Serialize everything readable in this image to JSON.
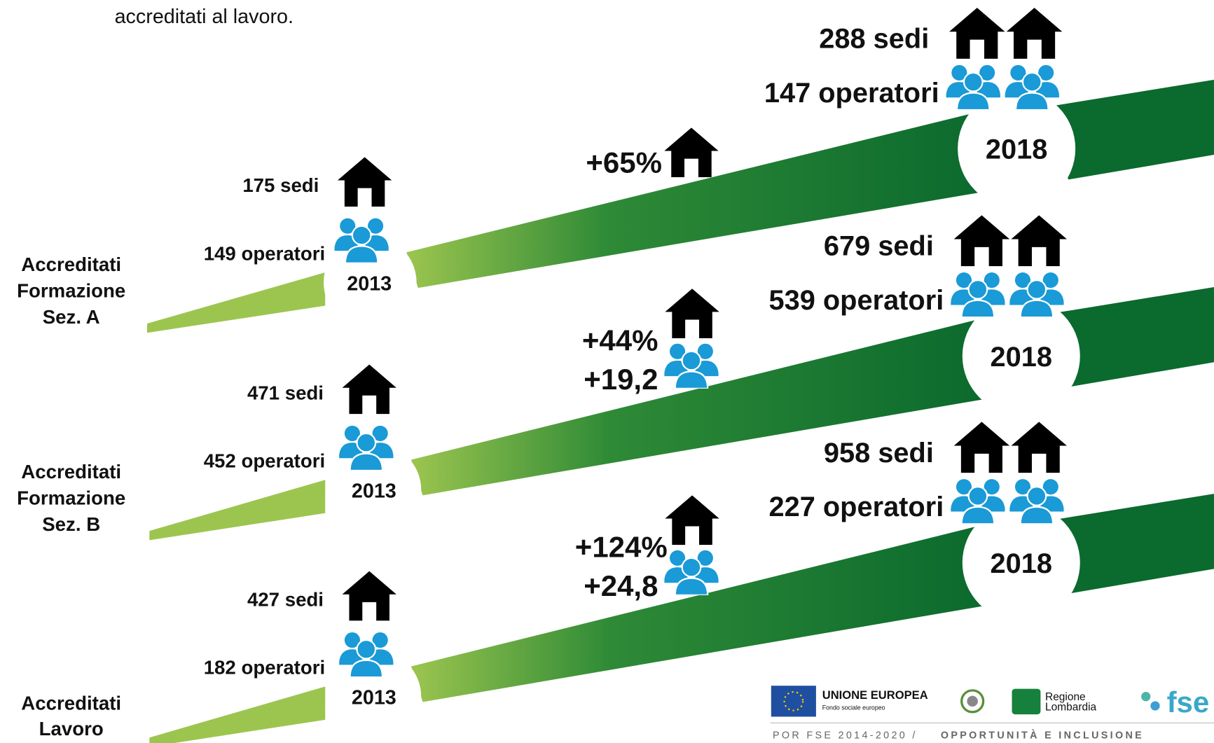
{
  "intro": "accreditati al lavoro.",
  "rows": [
    {
      "label": [
        "Accreditati",
        "Formazione",
        "Sez. A"
      ],
      "start": {
        "sedi": "175 sedi",
        "operatori": "149 operatori",
        "year": "2013"
      },
      "change": {
        "sedi": "+65%"
      },
      "end": {
        "sedi": "288 sedi",
        "operatori": "147 operatori",
        "year": "2018"
      }
    },
    {
      "label": [
        "Accreditati",
        "Formazione",
        "Sez. B"
      ],
      "start": {
        "sedi": "471 sedi",
        "operatori": "452 operatori",
        "year": "2013"
      },
      "change": {
        "sedi": "+44%",
        "operatori": "+19,2"
      },
      "end": {
        "sedi": "679 sedi",
        "operatori": "539 operatori",
        "year": "2018"
      }
    },
    {
      "label": [
        "Accreditati",
        "Lavoro"
      ],
      "start": {
        "sedi": "427 sedi",
        "operatori": "182 operatori",
        "year": "2013"
      },
      "change": {
        "sedi": "+124%",
        "operatori": "+24,8"
      },
      "end": {
        "sedi": "958 sedi",
        "operatori": "227 operatori",
        "year": "2018"
      }
    }
  ],
  "footer": {
    "eu": "UNIONE EUROPEA",
    "eu_sub": "Fondo sociale europeo",
    "region": [
      "Regione",
      "Lombardia"
    ],
    "fse": "fse",
    "program": "POR FSE 2014-2020 /",
    "program_bold": "OPPORTUNITÀ E INCLUSIONE"
  }
}
